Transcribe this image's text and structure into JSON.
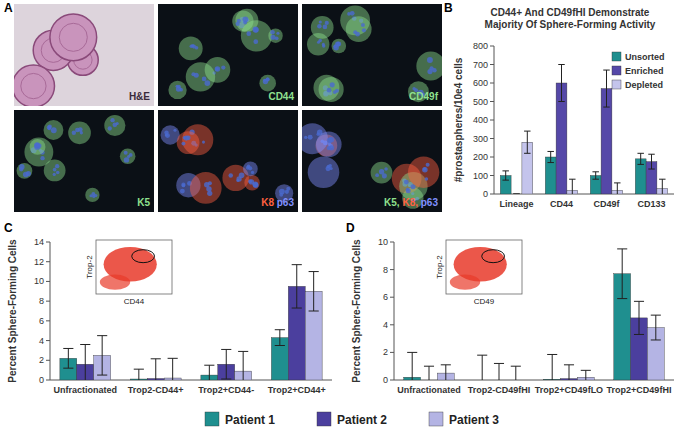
{
  "panel_labels": [
    "A",
    "B",
    "C",
    "D"
  ],
  "micrographs": [
    {
      "labels": [
        {
          "text": "H&E",
          "color": "#3a2a3a"
        }
      ]
    },
    {
      "labels": [
        {
          "text": "CD44",
          "color": "#8fe08f"
        }
      ]
    },
    {
      "labels": [
        {
          "text": "CD49f",
          "color": "#8fe08f"
        }
      ]
    },
    {
      "labels": [
        {
          "text": "K5",
          "color": "#8fe08f"
        }
      ]
    },
    {
      "labels": [
        {
          "text": "K8",
          "color": "#ff6040"
        },
        {
          "text": "p63",
          "color": "#8090ff"
        }
      ]
    },
    {
      "labels": [
        {
          "text": "K5,",
          "color": "#8fe08f"
        },
        {
          "text": "K8,",
          "color": "#ff6040"
        },
        {
          "text": "p63",
          "color": "#8090ff"
        }
      ]
    }
  ],
  "chart_data": [
    {
      "type": "bar",
      "title": "CD44+ And CD49fHI Demonstrate Majority Of Sphere-Forming Activity",
      "y_label": "#prostaspheres/10e4 cells",
      "categories": [
        "Lineage",
        "CD44",
        "CD49f",
        "CD133"
      ],
      "series": [
        {
          "name": "Unsorted",
          "color": "#1f8f8f",
          "values": [
            100,
            200,
            100,
            190
          ],
          "errors": [
            25,
            30,
            20,
            30
          ]
        },
        {
          "name": "Enriched",
          "color": "#5548a8",
          "values": [
            0,
            600,
            570,
            175
          ],
          "errors": [
            0,
            100,
            100,
            40
          ]
        },
        {
          "name": "Depleted",
          "color": "#c4c4ec",
          "values": [
            280,
            20,
            20,
            30
          ],
          "errors": [
            60,
            60,
            40,
            50
          ]
        }
      ],
      "ylim": [
        0,
        800
      ],
      "yticks": [
        0,
        100,
        200,
        300,
        400,
        500,
        600,
        700,
        800
      ],
      "grid": false,
      "legend": "top-right"
    },
    {
      "type": "bar",
      "y_label": "Percent Sphere-Forming Cells",
      "categories": [
        "Unfractionated",
        "Trop2-CD44+",
        "Trop2+CD44-",
        "Trop2+CD44+"
      ],
      "series": [
        {
          "name": "Patient 1",
          "color": "#1f8f8f",
          "values": [
            2.2,
            0.1,
            0.5,
            4.3
          ],
          "errors": [
            1,
            1,
            1,
            0.8
          ]
        },
        {
          "name": "Patient 2",
          "color": "#4b3f9e",
          "values": [
            1.6,
            0.15,
            1.6,
            9.5
          ],
          "errors": [
            2,
            2,
            1.5,
            2.2
          ]
        },
        {
          "name": "Patient 3",
          "color": "#b4b4e4",
          "values": [
            2.5,
            0.2,
            0.9,
            9.0
          ],
          "errors": [
            2,
            2,
            2,
            2
          ]
        }
      ],
      "ylim": [
        0,
        14
      ],
      "yticks": [
        0,
        2,
        4,
        6,
        8,
        10,
        12,
        14
      ],
      "grid": false,
      "legend": "bottom",
      "inset": {
        "x_label": "CD44",
        "y_label": "Trop-2"
      }
    },
    {
      "type": "bar",
      "y_label": "Percent Sphere-Forming Cells",
      "categories": [
        "Unfractionated",
        "Trop2-CD49fHI",
        "Trop2+CD49fLO",
        "Trop2+CD49fHI"
      ],
      "series": [
        {
          "color": "#1f8f8f",
          "values": [
            0.2,
            0,
            0.05,
            7.7
          ],
          "errors": [
            1.8,
            1.8,
            1.8,
            1.8
          ]
        },
        {
          "color": "#4b3f9e",
          "values": [
            0,
            0,
            0.1,
            4.5
          ],
          "errors": [
            1,
            1.2,
            1,
            1.2
          ]
        },
        {
          "color": "#b4b4e4",
          "values": [
            0.5,
            0,
            0.2,
            3.8
          ],
          "errors": [
            0.6,
            1,
            0.5,
            0.9
          ]
        }
      ],
      "ylim": [
        0,
        10
      ],
      "yticks": [
        0,
        2,
        4,
        6,
        8,
        10
      ],
      "grid": false,
      "inset": {
        "x_label": "CD49",
        "y_label": "Trop-2"
      }
    }
  ]
}
